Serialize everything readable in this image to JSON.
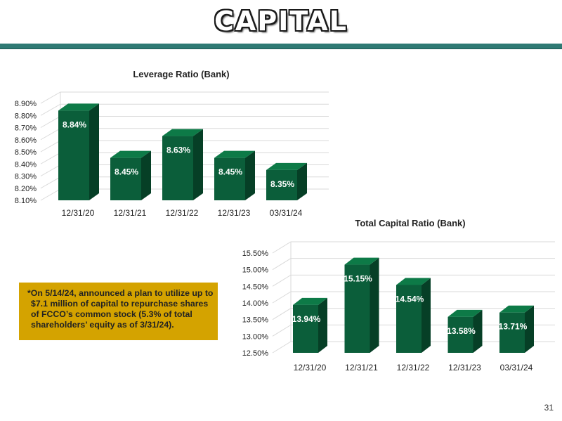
{
  "slide": {
    "title": "CAPITAL",
    "page_number": "31"
  },
  "note": {
    "text": "*On 5/14/24, announced a plan to utilize up to $7.1 million of capital to repurchase shares of FCCO’s common stock (5.3% of total shareholders’ equity as of 3/31/24).",
    "background_color": "#d4a300"
  },
  "colors": {
    "bar_front": "#0b5e3a",
    "bar_side": "#063f26",
    "bar_top": "#0d7a47",
    "title_rule": "#2f7a74"
  },
  "chart_data": [
    {
      "type": "bar",
      "title": "Leverage Ratio (Bank)",
      "categories": [
        "12/31/20",
        "12/31/21",
        "12/31/22",
        "12/31/23",
        "03/31/24"
      ],
      "values": [
        8.84,
        8.45,
        8.63,
        8.45,
        8.35
      ],
      "value_labels": [
        "8.84%",
        "8.45%",
        "8.63%",
        "8.45%",
        "8.35%"
      ],
      "y_ticks": [
        "8.10%",
        "8.20%",
        "8.30%",
        "8.40%",
        "8.50%",
        "8.60%",
        "8.70%",
        "8.80%",
        "8.90%"
      ],
      "ylim": [
        8.1,
        8.9
      ],
      "grid": true,
      "style": "3d-column"
    },
    {
      "type": "bar",
      "title": "Total Capital Ratio (Bank)",
      "categories": [
        "12/31/20",
        "12/31/21",
        "12/31/22",
        "12/31/23",
        "03/31/24"
      ],
      "values": [
        13.94,
        15.15,
        14.54,
        13.58,
        13.71
      ],
      "value_labels": [
        "13.94%",
        "15.15%",
        "14.54%",
        "13.58%",
        "13.71%"
      ],
      "y_ticks": [
        "12.50%",
        "13.00%",
        "13.50%",
        "14.00%",
        "14.50%",
        "15.00%",
        "15.50%"
      ],
      "ylim": [
        12.5,
        15.5
      ],
      "grid": true,
      "style": "3d-column"
    }
  ]
}
